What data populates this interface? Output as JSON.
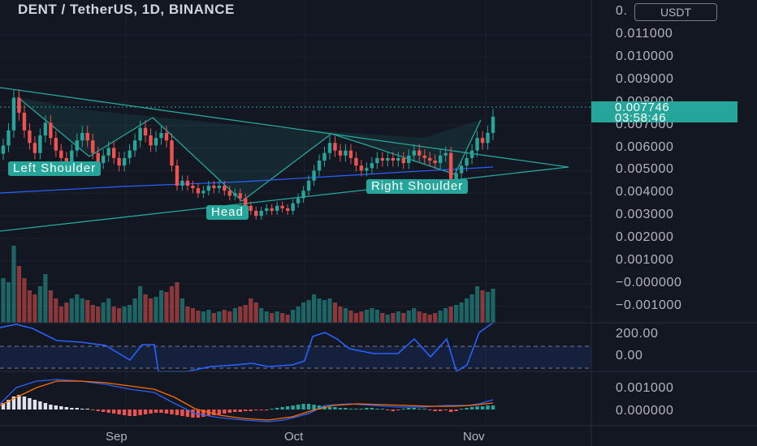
{
  "title": "DENT / TetherUS, 1D, BINANCE",
  "currency_button": "USDT",
  "price_axis": [
    "0.011000",
    "0.010000",
    "0.009000",
    "0.008000",
    "0.007000",
    "0.006000",
    "0.005000",
    "0.004000",
    "0.003000",
    "0.002000",
    "0.001000",
    "−0.000000",
    "−0.001000"
  ],
  "price_axis_top_partial": "0.",
  "current_price": "0.007746",
  "countdown": "03:58:46",
  "indicator_axis": [
    "200.00",
    "0.00"
  ],
  "macd_axis": [
    "0.001000",
    "0.000000"
  ],
  "dates": [
    "Sep",
    "Oct",
    "Nov"
  ],
  "annotations": {
    "left_shoulder": "Left Shoulder",
    "head": "Head",
    "right_shoulder": "Right Shoulder"
  },
  "colors": {
    "bg": "#131722",
    "up": "#26a69a",
    "down": "#ef5350",
    "pattern": "#26a69a",
    "ma": "#2962ff",
    "cci": "#2962ff",
    "signal": "#ff6d00"
  },
  "chart_data": {
    "type": "candlestick",
    "closes": [
      0.0066,
      0.0072,
      0.0085,
      0.0079,
      0.0072,
      0.0067,
      0.0063,
      0.007,
      0.0075,
      0.0069,
      0.0064,
      0.0061,
      0.0059,
      0.0064,
      0.0068,
      0.0071,
      0.0068,
      0.0063,
      0.0059,
      0.0062,
      0.0065,
      0.0061,
      0.0058,
      0.0061,
      0.0064,
      0.0068,
      0.0073,
      0.007,
      0.0066,
      0.0069,
      0.0071,
      0.0068,
      0.0058,
      0.005,
      0.0052,
      0.005,
      0.0049,
      0.0047,
      0.0048,
      0.005,
      0.0049,
      0.005,
      0.0048,
      0.0046,
      0.0047,
      0.0045,
      0.0042,
      0.004,
      0.0038,
      0.004,
      0.0041,
      0.004,
      0.0042,
      0.0041,
      0.004,
      0.0043,
      0.0045,
      0.0048,
      0.0052,
      0.0056,
      0.006,
      0.0063,
      0.0067,
      0.0064,
      0.0062,
      0.0064,
      0.0061,
      0.0058,
      0.0056,
      0.0057,
      0.0059,
      0.0061,
      0.006,
      0.0061,
      0.006,
      0.0061,
      0.0059,
      0.0062,
      0.0064,
      0.0062,
      0.0061,
      0.006,
      0.0059,
      0.0062,
      0.0063,
      0.0052,
      0.0055,
      0.0058,
      0.0061,
      0.0064,
      0.0069,
      0.0067,
      0.0071,
      0.007746
    ]
  }
}
